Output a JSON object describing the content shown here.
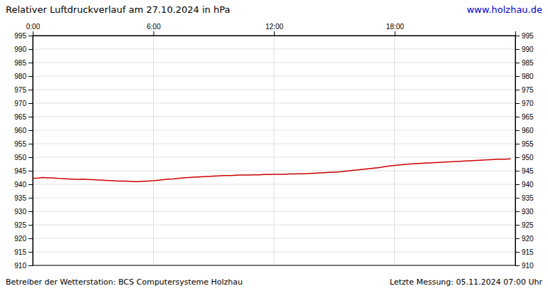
{
  "chart_data": {
    "type": "line",
    "title": "Relativer Luftdruckverlauf am 27.10.2024 in hPa",
    "annotations": [
      "www.holzhau.de",
      "Betreiber der Wetterstation: BCS Computersysteme Holzhau",
      "Letzte Messung: 05.11.2024 07:00 Uhr"
    ],
    "x": [
      0.0,
      0.25,
      0.5,
      0.75,
      1.0,
      1.25,
      1.5,
      1.75,
      2.0,
      2.25,
      2.5,
      2.75,
      3.0,
      3.25,
      3.5,
      3.75,
      4.0,
      4.25,
      4.5,
      4.75,
      5.0,
      5.25,
      5.5,
      5.75,
      6.0,
      6.25,
      6.5,
      6.75,
      7.0,
      7.25,
      7.5,
      7.75,
      8.0,
      8.25,
      8.5,
      8.75,
      9.0,
      9.25,
      9.5,
      9.75,
      10.0,
      10.25,
      10.5,
      10.75,
      11.0,
      11.25,
      11.5,
      11.75,
      12.0,
      12.25,
      12.5,
      12.75,
      13.0,
      13.25,
      13.5,
      13.75,
      14.0,
      14.25,
      14.5,
      14.75,
      15.0,
      15.25,
      15.5,
      15.75,
      16.0,
      16.25,
      16.5,
      16.75,
      17.0,
      17.25,
      17.5,
      17.75,
      18.0,
      18.25,
      18.5,
      18.75,
      19.0,
      19.25,
      19.5,
      19.75,
      20.0,
      20.25,
      20.5,
      20.75,
      21.0,
      21.25,
      21.5,
      21.75,
      22.0,
      22.25,
      22.5,
      22.75,
      23.0,
      23.25,
      23.5,
      23.75
    ],
    "values": [
      942.2,
      942.3,
      942.5,
      942.4,
      942.4,
      942.2,
      942.1,
      942.0,
      941.9,
      941.8,
      941.9,
      941.8,
      941.7,
      941.6,
      941.5,
      941.4,
      941.3,
      941.2,
      941.2,
      941.1,
      941.0,
      941.0,
      941.1,
      941.2,
      941.3,
      941.5,
      941.7,
      941.9,
      942.0,
      942.2,
      942.4,
      942.5,
      942.6,
      942.7,
      942.8,
      942.9,
      943.0,
      943.1,
      943.2,
      943.2,
      943.3,
      943.4,
      943.4,
      943.4,
      943.5,
      943.5,
      943.6,
      943.6,
      943.7,
      943.7,
      943.7,
      943.8,
      943.8,
      943.9,
      943.9,
      944.0,
      944.1,
      944.2,
      944.3,
      944.4,
      944.5,
      944.6,
      944.8,
      945.0,
      945.2,
      945.4,
      945.6,
      945.8,
      946.0,
      946.2,
      946.5,
      946.8,
      947.0,
      947.2,
      947.4,
      947.5,
      947.6,
      947.7,
      947.8,
      947.9,
      948.0,
      948.1,
      948.2,
      948.3,
      948.4,
      948.5,
      948.6,
      948.7,
      948.8,
      948.9,
      949.0,
      949.1,
      949.2,
      949.3,
      949.3,
      949.4
    ],
    "color": "#cc0000",
    "xlim": [
      0,
      24
    ],
    "xticks": [
      {
        "value": 0,
        "label": "0:00"
      },
      {
        "value": 6,
        "label": "6:00"
      },
      {
        "value": 12,
        "label": "12:00"
      },
      {
        "value": 18,
        "label": "18:00"
      }
    ],
    "ylim": [
      910,
      995
    ],
    "yticks": [
      910,
      915,
      920,
      925,
      930,
      935,
      940,
      945,
      950,
      955,
      960,
      965,
      970,
      975,
      980,
      985,
      990,
      995
    ],
    "y2lim": [
      910,
      995
    ],
    "y2ticks": [
      910,
      915,
      920,
      925,
      930,
      935,
      940,
      945,
      950,
      955,
      960,
      965,
      970,
      975,
      980,
      985,
      990,
      995
    ],
    "grid": true
  }
}
